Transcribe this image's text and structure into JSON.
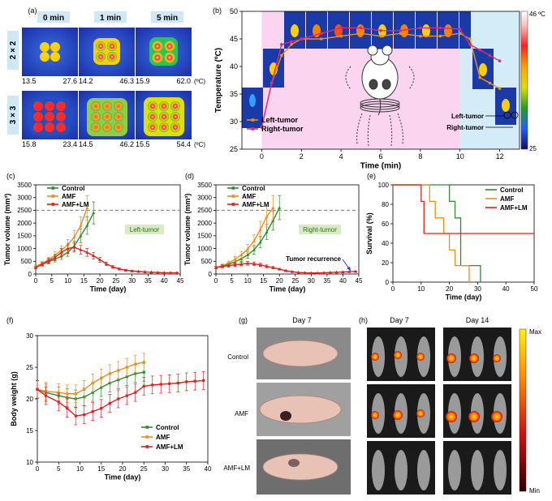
{
  "panel_labels": [
    "(a)",
    "(b)",
    "(c)",
    "(d)",
    "(e)",
    "(f)",
    "(g)",
    "(h)"
  ],
  "panel_a": {
    "col_headers": [
      "0 min",
      "1 min",
      "5 min"
    ],
    "row_labels": [
      "2 × 2",
      "3 × 3"
    ],
    "unit": "(ºC)",
    "ranges": [
      [
        "13.5",
        "27.6",
        "14.2",
        "46.3",
        "15.9",
        "62.0"
      ],
      [
        "15.8",
        "23.4",
        "14.5",
        "46.2",
        "15.5",
        "54.4"
      ]
    ]
  },
  "colorbar_b": {
    "max": "46 ºC",
    "min": "25"
  },
  "panel_g": {
    "title": "Day 7",
    "rows": [
      "Control",
      "AMF",
      "AMF+LM"
    ]
  },
  "panel_h": {
    "titles": [
      "Day 7",
      "Day 14"
    ],
    "max": "Max",
    "min": "Min"
  },
  "colors": {
    "green": "#2e8b2e",
    "orange": "#e8901e",
    "red": "#dd2222",
    "pink": "#e0287a",
    "lightpink": "#fbd4f0",
    "lightblue": "#d4ecf8"
  },
  "chart_data": [
    {
      "id": "b",
      "type": "line",
      "xlabel": "Time (min)",
      "ylabel": "Temperature (ºC)",
      "xlim": [
        -1,
        13
      ],
      "ylim": [
        25,
        50
      ],
      "xticks": [
        0,
        2,
        4,
        6,
        8,
        10,
        12
      ],
      "yticks": [
        25,
        30,
        35,
        40,
        45,
        50
      ],
      "legend_position": "lower-left",
      "annotations": [
        "Left-tumor",
        "Right-tumor"
      ],
      "series": [
        {
          "name": "Left-tumor",
          "color": "#e8901e",
          "x": [
            0,
            0.5,
            1,
            1.5,
            2,
            3,
            4,
            5,
            6,
            7,
            8,
            9,
            10,
            10.5,
            11,
            11.5,
            12
          ],
          "y": [
            29,
            37,
            42,
            44,
            45,
            45,
            45.5,
            46,
            45.5,
            46,
            45.5,
            45.5,
            46,
            45,
            38,
            37,
            36
          ]
        },
        {
          "name": "Right-tumor",
          "color": "#e0287a",
          "x": [
            0,
            0.5,
            1,
            1.5,
            2,
            3,
            4,
            5,
            6,
            7,
            8,
            9,
            10,
            10.5,
            11,
            11.5,
            12
          ],
          "y": [
            29,
            37,
            44,
            44.5,
            45,
            46,
            47,
            47,
            46.5,
            46.5,
            47,
            47,
            46.8,
            44,
            43,
            42,
            41
          ]
        }
      ]
    },
    {
      "id": "c",
      "type": "line",
      "xlabel": "Time (day)",
      "ylabel": "Tumor volume (mm³)",
      "xlim": [
        0,
        45
      ],
      "ylim": [
        0,
        3500
      ],
      "xticks": [
        0,
        5,
        10,
        15,
        20,
        25,
        30,
        35,
        40,
        45
      ],
      "yticks": [
        0,
        500,
        1000,
        1500,
        2000,
        2500,
        3000,
        3500
      ],
      "threshold": 2500,
      "tag": "Left-tumor",
      "legend_position": "top-left",
      "series": [
        {
          "name": "Control",
          "color": "#2e8b2e",
          "x": [
            0,
            2,
            4,
            6,
            8,
            10,
            12,
            14,
            16,
            18
          ],
          "y": [
            300,
            380,
            480,
            580,
            700,
            850,
            1100,
            1500,
            1900,
            2400
          ]
        },
        {
          "name": "AMF",
          "color": "#e8901e",
          "x": [
            0,
            2,
            4,
            6,
            8,
            10,
            12,
            14,
            16
          ],
          "y": [
            300,
            420,
            560,
            740,
            940,
            1150,
            1450,
            1900,
            2600
          ]
        },
        {
          "name": "AMF+LM",
          "color": "#dd2222",
          "x": [
            0,
            2,
            4,
            6,
            8,
            10,
            12,
            14,
            16,
            18,
            20,
            22,
            24,
            26,
            28,
            30,
            32,
            34,
            36,
            38,
            40,
            42,
            44
          ],
          "y": [
            250,
            380,
            520,
            650,
            850,
            1000,
            1050,
            950,
            850,
            720,
            560,
            400,
            280,
            200,
            150,
            120,
            100,
            80,
            70,
            60,
            50,
            50,
            50
          ]
        }
      ]
    },
    {
      "id": "d",
      "type": "line",
      "xlabel": "Time (day)",
      "ylabel": "Tumor volume (mm³)",
      "xlim": [
        0,
        45
      ],
      "ylim": [
        0,
        3500
      ],
      "xticks": [
        0,
        5,
        10,
        15,
        20,
        25,
        30,
        35,
        40,
        45
      ],
      "yticks": [
        0,
        500,
        1000,
        1500,
        2000,
        2500,
        3000,
        3500
      ],
      "threshold": 2500,
      "tag": "Right-tumor",
      "annotation": "Tumor recurrence",
      "legend_position": "top-left",
      "series": [
        {
          "name": "Control",
          "color": "#2e8b2e",
          "x": [
            0,
            2,
            4,
            6,
            8,
            10,
            12,
            14,
            16,
            18,
            20
          ],
          "y": [
            250,
            310,
            380,
            480,
            600,
            750,
            950,
            1250,
            1650,
            2100,
            2600
          ]
        },
        {
          "name": "AMF",
          "color": "#e8901e",
          "x": [
            0,
            2,
            4,
            6,
            8,
            10,
            12,
            14,
            16,
            18
          ],
          "y": [
            250,
            330,
            430,
            580,
            750,
            980,
            1300,
            1750,
            2250,
            2600
          ]
        },
        {
          "name": "AMF+LM",
          "color": "#dd2222",
          "x": [
            0,
            2,
            4,
            6,
            8,
            10,
            12,
            14,
            16,
            18,
            20,
            22,
            24,
            26,
            28,
            30,
            32,
            34,
            36,
            38,
            40,
            42,
            44
          ],
          "y": [
            250,
            300,
            330,
            360,
            390,
            420,
            400,
            360,
            300,
            250,
            190,
            130,
            90,
            60,
            50,
            40,
            40,
            50,
            60,
            70,
            80,
            90,
            100
          ]
        }
      ]
    },
    {
      "id": "e",
      "type": "line",
      "xlabel": "Time (day)",
      "ylabel": "Survival (%)",
      "xlim": [
        0,
        50
      ],
      "ylim": [
        0,
        100
      ],
      "xticks": [
        0,
        10,
        20,
        30,
        40,
        50
      ],
      "yticks": [
        0,
        20,
        40,
        60,
        80,
        100
      ],
      "legend_position": "top-right",
      "series": [
        {
          "name": "Control",
          "color": "#2e8b2e",
          "x": [
            0,
            20,
            20,
            22,
            22,
            24,
            24,
            31,
            31
          ],
          "y": [
            100,
            100,
            83,
            83,
            66,
            66,
            17,
            17,
            0
          ]
        },
        {
          "name": "AMF",
          "color": "#e8901e",
          "x": [
            0,
            13,
            13,
            15,
            15,
            18,
            18,
            20,
            20,
            22,
            22,
            27,
            27
          ],
          "y": [
            100,
            100,
            83,
            83,
            66,
            66,
            50,
            50,
            33,
            33,
            17,
            17,
            0
          ]
        },
        {
          "name": "AMF+LM",
          "color": "#dd2222",
          "x": [
            0,
            10,
            10,
            11,
            11,
            50
          ],
          "y": [
            100,
            100,
            83,
            83,
            50,
            50
          ]
        }
      ]
    },
    {
      "id": "f",
      "type": "line",
      "xlabel": "Time (day)",
      "ylabel": "Body weight (g)",
      "xlim": [
        0,
        40
      ],
      "ylim": [
        10,
        30
      ],
      "xticks": [
        0,
        5,
        10,
        15,
        20,
        25,
        30,
        35,
        40
      ],
      "yticks": [
        10,
        15,
        20,
        25,
        30
      ],
      "legend_position": "lower-right",
      "series": [
        {
          "name": "Control",
          "color": "#2e8b2e",
          "x": [
            0,
            2,
            5,
            7,
            9,
            11,
            13,
            15,
            17,
            19,
            21,
            23,
            25
          ],
          "y": [
            21.5,
            21,
            20.5,
            20.2,
            20,
            20.3,
            21,
            21.8,
            22.5,
            23,
            23.5,
            24,
            24.2
          ]
        },
        {
          "name": "AMF",
          "color": "#e8901e",
          "x": [
            0,
            2,
            5,
            7,
            9,
            11,
            13,
            15,
            17,
            19,
            21,
            23,
            25
          ],
          "y": [
            21.5,
            21.2,
            21,
            20.8,
            20.8,
            21.5,
            22.5,
            23.3,
            24,
            24.5,
            25,
            25.5,
            25.8
          ]
        },
        {
          "name": "AMF+LM",
          "color": "#dd2222",
          "x": [
            0,
            2,
            5,
            7,
            9,
            11,
            13,
            15,
            17,
            19,
            21,
            23,
            25,
            27,
            29,
            31,
            33,
            35,
            37,
            39
          ],
          "y": [
            21.5,
            20.5,
            19.5,
            18.5,
            17.3,
            17.5,
            18,
            18.5,
            19.3,
            20,
            20.5,
            21,
            22,
            22.2,
            22.3,
            22.4,
            22.5,
            22.7,
            22.8,
            22.9
          ]
        }
      ]
    }
  ]
}
